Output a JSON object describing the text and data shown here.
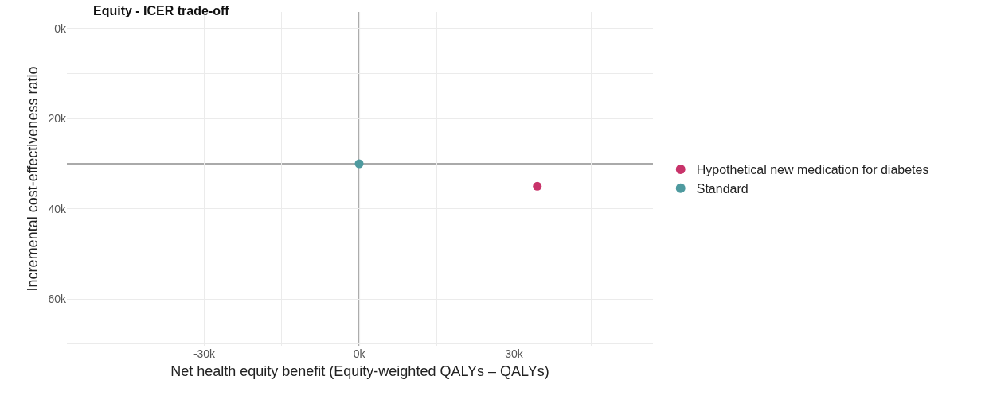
{
  "chart_data": {
    "type": "scatter",
    "title": "Equity - ICER trade-off",
    "xlabel": "Net health equity benefit (Equity-weighted QALYs – QALYs)",
    "ylabel": "Incremental cost-effectiveness ratio",
    "series": [
      {
        "name": "Hypothetical new medication for diabetes",
        "color": "#c8336a",
        "x": [
          34500
        ],
        "values": [
          35000
        ]
      },
      {
        "name": "Standard",
        "color": "#4e9a9f",
        "x": [
          0
        ],
        "values": [
          30000
        ]
      }
    ],
    "xlim": [
      -56600,
      56900
    ],
    "xticks": [
      {
        "value": -45000,
        "label": null
      },
      {
        "value": -30000,
        "label": "-30k"
      },
      {
        "value": -15000,
        "label": null
      },
      {
        "value": 0,
        "label": "0k"
      },
      {
        "value": 15000,
        "label": null
      },
      {
        "value": 30000,
        "label": "30k"
      },
      {
        "value": 45000,
        "label": null
      }
    ],
    "ylim": [
      70400,
      -3700
    ],
    "yticks": [
      {
        "value": 0,
        "label": "0k"
      },
      {
        "value": 10000,
        "label": null
      },
      {
        "value": 20000,
        "label": "20k"
      },
      {
        "value": 40000,
        "label": "40k"
      },
      {
        "value": 50000,
        "label": null
      },
      {
        "value": 60000,
        "label": "60k"
      },
      {
        "value": 70000,
        "label": null
      }
    ],
    "ref_lines": [
      {
        "axis": "y",
        "value": 30000,
        "color": "#aaaaaa"
      },
      {
        "axis": "x",
        "value": 0,
        "color": "#aaaaaa"
      }
    ],
    "grid": true,
    "legend": "right",
    "marker": "circle"
  }
}
